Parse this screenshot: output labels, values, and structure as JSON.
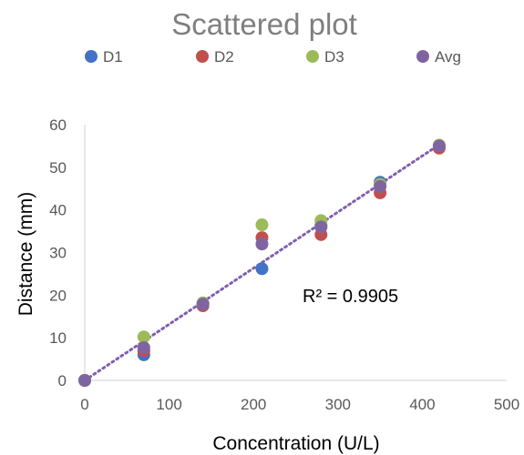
{
  "chart_data": {
    "type": "scatter",
    "title": "Scattered plot",
    "xlabel": "Concentration (U/L)",
    "ylabel": "Distance (mm)",
    "xlim": [
      0,
      500
    ],
    "ylim": [
      0,
      60
    ],
    "xticks": [
      0,
      100,
      200,
      300,
      400,
      500
    ],
    "yticks": [
      0,
      10,
      20,
      30,
      40,
      50,
      60
    ],
    "grid": false,
    "legend_position": "top",
    "series": [
      {
        "name": "D1",
        "color": "#4472c4",
        "points": [
          [
            0,
            0
          ],
          [
            70,
            6
          ],
          [
            140,
            18
          ],
          [
            210,
            26.2
          ],
          [
            280,
            36.3
          ],
          [
            350,
            46.5
          ],
          [
            420,
            55
          ]
        ]
      },
      {
        "name": "D2",
        "color": "#c0504d",
        "points": [
          [
            0,
            0
          ],
          [
            70,
            7
          ],
          [
            140,
            17.5
          ],
          [
            210,
            33.5
          ],
          [
            280,
            34.2
          ],
          [
            350,
            44
          ],
          [
            420,
            54.5
          ]
        ]
      },
      {
        "name": "D3",
        "color": "#9bbb59",
        "points": [
          [
            0,
            0
          ],
          [
            70,
            10.2
          ],
          [
            140,
            18.2
          ],
          [
            210,
            36.5
          ],
          [
            280,
            37.5
          ],
          [
            350,
            46
          ],
          [
            420,
            55.2
          ]
        ]
      },
      {
        "name": "Avg",
        "color": "#8064a2",
        "points": [
          [
            0,
            0
          ],
          [
            70,
            7.7
          ],
          [
            140,
            17.9
          ],
          [
            210,
            32
          ],
          [
            280,
            36
          ],
          [
            350,
            45.5
          ],
          [
            420,
            55
          ]
        ]
      }
    ],
    "trendline": {
      "color": "#7f5fae",
      "style": "dotted",
      "from": [
        0,
        0
      ],
      "to": [
        420,
        55.3
      ]
    },
    "annotation": "R² = 0.9905"
  }
}
